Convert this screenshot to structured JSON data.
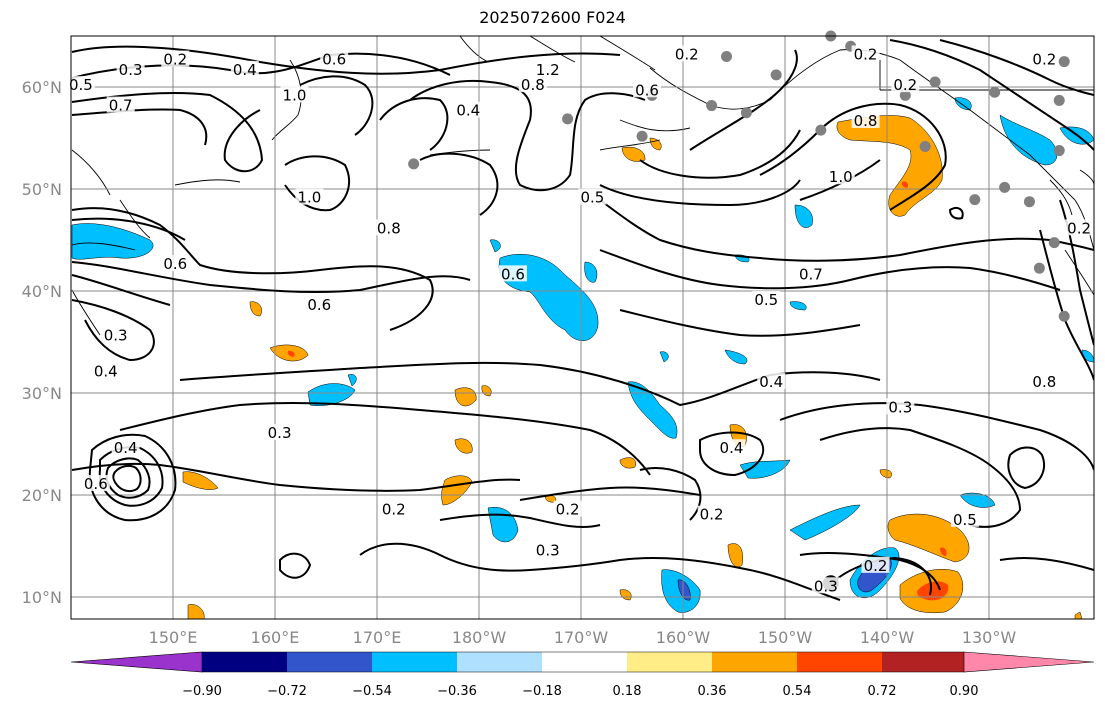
{
  "title": "2025072600 F024",
  "map": {
    "lat_labels": [
      "60°N",
      "50°N",
      "40°N",
      "30°N",
      "20°N",
      "10°N"
    ],
    "lon_labels": [
      "150°E",
      "160°E",
      "170°E",
      "180°W",
      "170°W",
      "160°W",
      "150°W",
      "140°W",
      "130°W"
    ],
    "lon_range": [
      140,
      243
    ],
    "lat_range": [
      8,
      65
    ],
    "grid": true
  },
  "contour_labels": [
    {
      "text": "0.2",
      "lon": 150.5,
      "lat": 62.5
    },
    {
      "text": "0.3",
      "lon": 146,
      "lat": 61.5
    },
    {
      "text": "0.5",
      "lon": 141,
      "lat": 60
    },
    {
      "text": "0.7",
      "lon": 145,
      "lat": 58
    },
    {
      "text": "0.4",
      "lon": 157.5,
      "lat": 61.5
    },
    {
      "text": "0.6",
      "lon": 166.5,
      "lat": 62.5
    },
    {
      "text": "1.0",
      "lon": 162.5,
      "lat": 59
    },
    {
      "text": "1.2",
      "lon": 188,
      "lat": 61.5
    },
    {
      "text": "0.8",
      "lon": 186.5,
      "lat": 60
    },
    {
      "text": "0.4",
      "lon": 180,
      "lat": 57.5
    },
    {
      "text": "0.2",
      "lon": 202,
      "lat": 63
    },
    {
      "text": "0.6",
      "lon": 198,
      "lat": 59.5
    },
    {
      "text": "0.2",
      "lon": 220,
      "lat": 63
    },
    {
      "text": "0.2",
      "lon": 224,
      "lat": 60
    },
    {
      "text": "0.2",
      "lon": 238,
      "lat": 62.5
    },
    {
      "text": "0.8",
      "lon": 220,
      "lat": 56.5
    },
    {
      "text": "1.0",
      "lon": 217.5,
      "lat": 51
    },
    {
      "text": "1.0",
      "lon": 164,
      "lat": 49
    },
    {
      "text": "0.8",
      "lon": 172,
      "lat": 46
    },
    {
      "text": "0.5",
      "lon": 192.5,
      "lat": 49
    },
    {
      "text": "0.6",
      "lon": 184.5,
      "lat": 41.5
    },
    {
      "text": "0.6",
      "lon": 150.5,
      "lat": 42.5
    },
    {
      "text": "0.6",
      "lon": 165,
      "lat": 38.5
    },
    {
      "text": "0.3",
      "lon": 144.5,
      "lat": 35.5
    },
    {
      "text": "0.4",
      "lon": 143.5,
      "lat": 32
    },
    {
      "text": "0.7",
      "lon": 214.5,
      "lat": 41.5
    },
    {
      "text": "0.5",
      "lon": 210,
      "lat": 39
    },
    {
      "text": "0.4",
      "lon": 210.5,
      "lat": 31
    },
    {
      "text": "0.3",
      "lon": 223.5,
      "lat": 28.5
    },
    {
      "text": "0.8",
      "lon": 238,
      "lat": 31
    },
    {
      "text": "0.3",
      "lon": 161,
      "lat": 26
    },
    {
      "text": "0.4",
      "lon": 145.5,
      "lat": 24.5
    },
    {
      "text": "0.6",
      "lon": 142.5,
      "lat": 21
    },
    {
      "text": "0.2",
      "lon": 172.5,
      "lat": 18.5
    },
    {
      "text": "0.2",
      "lon": 190,
      "lat": 18.5
    },
    {
      "text": "0.3",
      "lon": 188,
      "lat": 14.5
    },
    {
      "text": "0.4",
      "lon": 206.5,
      "lat": 24.5
    },
    {
      "text": "0.2",
      "lon": 204.5,
      "lat": 18
    },
    {
      "text": "0.3",
      "lon": 216,
      "lat": 11
    },
    {
      "text": "0.2",
      "lon": 221,
      "lat": 13
    },
    {
      "text": "0.5",
      "lon": 230,
      "lat": 17.5
    },
    {
      "text": "0.2",
      "lon": 241.5,
      "lat": 46
    }
  ],
  "storm_marker": {
    "lon": 216.5,
    "lat": 11.5
  },
  "stations": [
    {
      "lon": 206,
      "lat": 63
    },
    {
      "lon": 211,
      "lat": 61.2
    },
    {
      "lon": 216.5,
      "lat": 65
    },
    {
      "lon": 218.5,
      "lat": 64
    },
    {
      "lon": 224,
      "lat": 59.2
    },
    {
      "lon": 227,
      "lat": 60.5
    },
    {
      "lon": 233,
      "lat": 59.5
    },
    {
      "lon": 239.5,
      "lat": 58.7
    },
    {
      "lon": 204.5,
      "lat": 58.2
    },
    {
      "lon": 208,
      "lat": 57.5
    },
    {
      "lon": 198.5,
      "lat": 59.2
    },
    {
      "lon": 197.5,
      "lat": 55.2
    },
    {
      "lon": 190,
      "lat": 56.9
    },
    {
      "lon": 174.5,
      "lat": 52.5
    },
    {
      "lon": 215.5,
      "lat": 55.8
    },
    {
      "lon": 239.5,
      "lat": 53.8
    },
    {
      "lon": 234,
      "lat": 50.2
    },
    {
      "lon": 236.5,
      "lat": 48.8
    },
    {
      "lon": 239,
      "lat": 44.8
    },
    {
      "lon": 237.5,
      "lat": 42.3
    },
    {
      "lon": 240,
      "lat": 37.6
    },
    {
      "lon": 231,
      "lat": 49
    },
    {
      "lon": 226,
      "lat": 54.2
    },
    {
      "lon": 240,
      "lat": 62.5
    }
  ],
  "colorbar": {
    "tick_labels": [
      "−0.90",
      "−0.72",
      "−0.54",
      "−0.36",
      "−0.18",
      "0.18",
      "0.36",
      "0.54",
      "0.72",
      "0.90"
    ],
    "colors": [
      "#9933cc",
      "#000080",
      "#3355cc",
      "#00bfff",
      "#b0e0ff",
      "#ffffff",
      "#ffee88",
      "#ffa500",
      "#ff4500",
      "#b22222",
      "#ff88aa"
    ]
  }
}
